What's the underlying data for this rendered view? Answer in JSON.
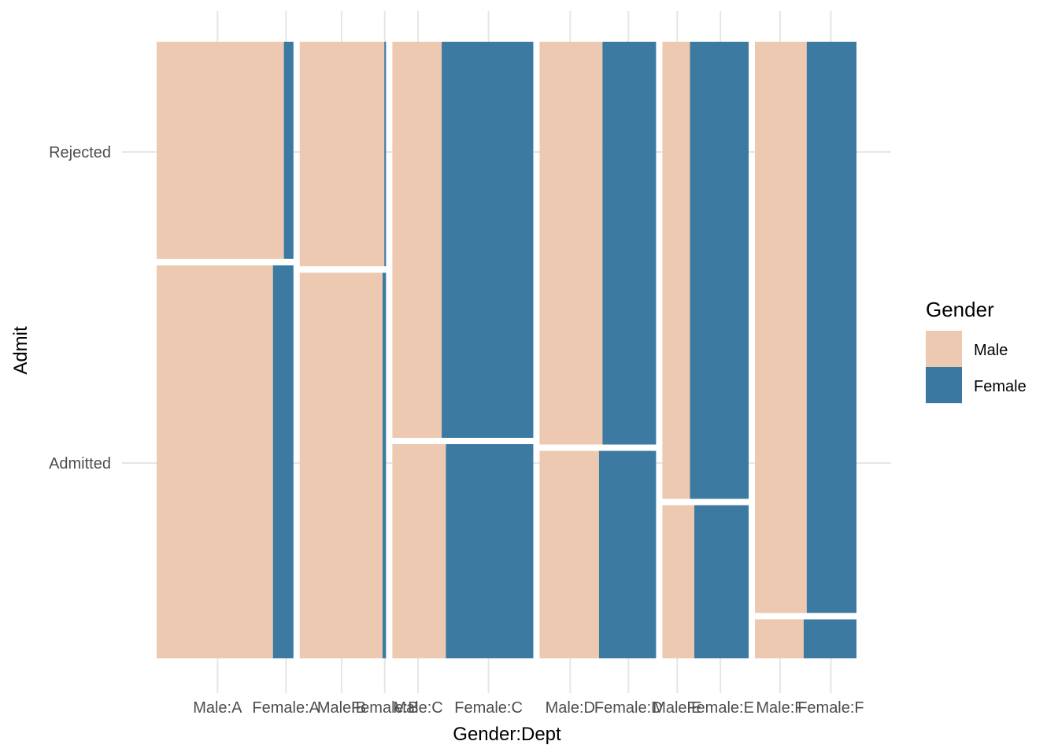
{
  "chart_data": {
    "type": "mosaic",
    "xlabel": "Gender:Dept",
    "ylabel": "Admit",
    "y_categories": [
      "Admitted",
      "Rejected"
    ],
    "x_tick_labels": [
      "Male:A",
      "Female:A",
      "Male:B",
      "Female:B",
      "Male:C",
      "Female:C",
      "Male:D",
      "Female:D",
      "Male:E",
      "Female:E",
      "Male:F",
      "Female:F"
    ],
    "legend": {
      "title": "Gender",
      "position": "right",
      "entries": [
        {
          "name": "Male",
          "color": "#ecc9b0"
        },
        {
          "name": "Female",
          "color": "#3b78a1"
        }
      ]
    },
    "grid": true,
    "departments": [
      {
        "dept": "A",
        "width_share": 0.2047,
        "admitted_share": 0.644,
        "male_share_admitted": 0.85,
        "male_share_rejected": 0.93
      },
      {
        "dept": "B",
        "width_share": 0.1291,
        "admitted_share": 0.632,
        "male_share_admitted": 0.96,
        "male_share_rejected": 0.98
      },
      {
        "dept": "C",
        "width_share": 0.2109,
        "admitted_share": 0.351,
        "male_share_admitted": 0.38,
        "male_share_rejected": 0.35
      },
      {
        "dept": "D",
        "width_share": 0.1743,
        "admitted_share": 0.34,
        "male_share_admitted": 0.51,
        "male_share_rejected": 0.54
      },
      {
        "dept": "E",
        "width_share": 0.1291,
        "admitted_share": 0.251,
        "male_share_admitted": 0.37,
        "male_share_rejected": 0.32
      },
      {
        "dept": "F",
        "width_share": 0.1519,
        "admitted_share": 0.064,
        "male_share_admitted": 0.48,
        "male_share_rejected": 0.51
      }
    ]
  }
}
